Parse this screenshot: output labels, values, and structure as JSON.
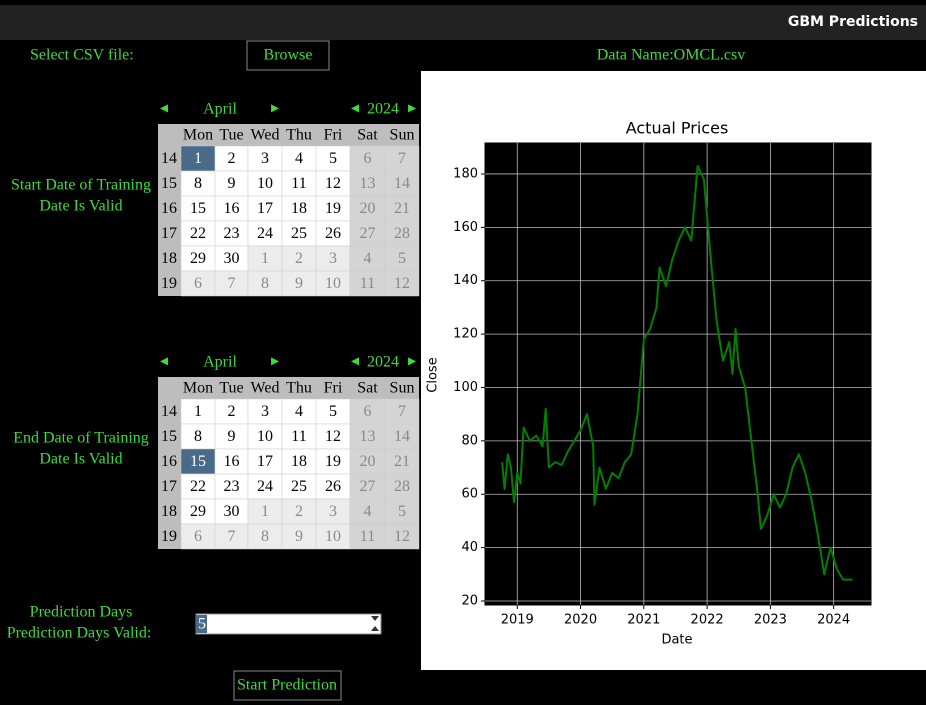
{
  "window": {
    "title": "GBM Predictions"
  },
  "file": {
    "label": "Select CSV file:",
    "button": "Browse",
    "data_name": "Data Name:OMCL.csv"
  },
  "calendars": [
    {
      "label": [
        "Start Date of Training",
        "Date Is Valid"
      ],
      "month": "April",
      "year": 2024,
      "weekdays": [
        "Mon",
        "Tue",
        "Wed",
        "Thu",
        "Fri",
        "Sat",
        "Sun"
      ],
      "weeks": [
        14,
        15,
        16,
        17,
        18,
        19
      ],
      "days": [
        [
          1,
          2,
          3,
          4,
          5,
          6,
          7
        ],
        [
          8,
          9,
          10,
          11,
          12,
          13,
          14
        ],
        [
          15,
          16,
          17,
          18,
          19,
          20,
          21
        ],
        [
          22,
          23,
          24,
          25,
          26,
          27,
          28
        ],
        [
          29,
          30,
          1,
          2,
          3,
          4,
          5
        ],
        [
          6,
          7,
          8,
          9,
          10,
          11,
          12
        ]
      ]
    },
    {
      "label": [
        "End Date of Training",
        "Date Is Valid"
      ],
      "month": "April",
      "year": 2024,
      "weekdays": [
        "Mon",
        "Tue",
        "Wed",
        "Thu",
        "Fri",
        "Sat",
        "Sun"
      ],
      "weeks": [
        14,
        15,
        16,
        17,
        18,
        19
      ],
      "days": [
        [
          1,
          2,
          3,
          4,
          5,
          6,
          7
        ],
        [
          8,
          9,
          10,
          11,
          12,
          13,
          14
        ],
        [
          15,
          16,
          17,
          18,
          19,
          20,
          21
        ],
        [
          22,
          23,
          24,
          25,
          26,
          27,
          28
        ],
        [
          29,
          30,
          1,
          2,
          3,
          4,
          5
        ],
        [
          6,
          7,
          8,
          9,
          10,
          11,
          12
        ]
      ]
    }
  ],
  "prediction": {
    "label": "Prediction Days",
    "valid_label": "Prediction Days Valid:",
    "value": 5
  },
  "start_button": "Start Prediction",
  "chart_data": {
    "type": "line",
    "title": "Actual Prices",
    "x_label": "Date",
    "y_label": "Close",
    "color": "#008000",
    "x": [
      2018.76,
      2018.8,
      2018.85,
      2018.9,
      2018.95,
      2019.0,
      2019.05,
      2019.1,
      2019.2,
      2019.3,
      2019.4,
      2019.45,
      2019.5,
      2019.6,
      2019.7,
      2019.8,
      2019.9,
      2020.0,
      2020.1,
      2020.2,
      2020.22,
      2020.3,
      2020.4,
      2020.5,
      2020.6,
      2020.7,
      2020.8,
      2020.9,
      2021.0,
      2021.1,
      2021.2,
      2021.25,
      2021.35,
      2021.45,
      2021.55,
      2021.65,
      2021.75,
      2021.85,
      2021.95,
      2022.05,
      2022.15,
      2022.25,
      2022.35,
      2022.4,
      2022.45,
      2022.5,
      2022.6,
      2022.7,
      2022.8,
      2022.85,
      2022.95,
      2023.05,
      2023.15,
      2023.25,
      2023.35,
      2023.45,
      2023.55,
      2023.65,
      2023.75,
      2023.85,
      2023.95,
      2024.05,
      2024.15,
      2024.3
    ],
    "values": [
      72,
      62,
      75,
      70,
      57,
      68,
      64,
      85,
      80,
      82,
      78,
      92,
      70,
      72,
      71,
      76,
      80,
      84,
      90,
      78,
      56,
      70,
      62,
      68,
      66,
      72,
      75,
      90,
      118,
      122,
      130,
      145,
      138,
      148,
      155,
      160,
      155,
      183,
      178,
      150,
      125,
      110,
      117,
      105,
      122,
      108,
      100,
      80,
      60,
      47,
      52,
      60,
      55,
      60,
      70,
      75,
      68,
      58,
      45,
      30,
      40,
      32,
      28,
      28
    ],
    "xlim": [
      2018.49,
      2024.59
    ],
    "ylim": [
      18.5,
      191.6
    ],
    "xticks": [
      2019,
      2020,
      2021,
      2022,
      2023,
      2024
    ],
    "yticks": [
      20,
      40,
      60,
      80,
      100,
      120,
      140,
      160,
      180
    ],
    "grid": true
  }
}
